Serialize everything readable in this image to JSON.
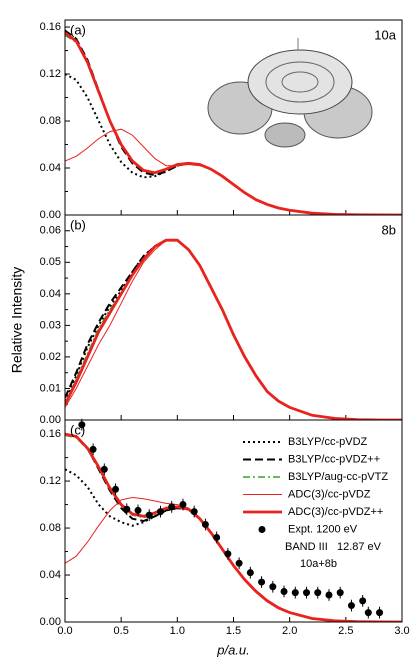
{
  "y_label": "Relative Intensity",
  "chart_data": [
    {
      "type": "line",
      "panel_label": "(a)",
      "orbital": "10a",
      "xlim": [
        0,
        3
      ],
      "ylim": [
        0,
        0.166
      ],
      "yticks": [
        {
          "value": 0,
          "label": "0.00"
        },
        {
          "value": 0.04,
          "label": "0.04"
        },
        {
          "value": 0.08,
          "label": "0.08"
        },
        {
          "value": 0.12,
          "label": "0.12"
        },
        {
          "value": 0.16,
          "label": "0.16"
        }
      ],
      "x": [
        0,
        0.1,
        0.2,
        0.3,
        0.4,
        0.5,
        0.6,
        0.7,
        0.8,
        0.9,
        1.0,
        1.1,
        1.2,
        1.3,
        1.4,
        1.5,
        1.6,
        1.7,
        1.8,
        1.9,
        2.0,
        2.2,
        2.4,
        2.6,
        2.8,
        3.0
      ],
      "series": [
        {
          "color": "#000000",
          "style": "dotted",
          "width": 2,
          "values": [
            0.12,
            0.115,
            0.1,
            0.08,
            0.06,
            0.045,
            0.036,
            0.032,
            0.033,
            0.037,
            0.042,
            0.044,
            0.043,
            0.039,
            0.033,
            0.026,
            0.019,
            0.013,
            0.009,
            0.006,
            0.004,
            0.0015,
            0.0005,
            0.0002,
            0.0001,
            0
          ]
        },
        {
          "color": "#000000",
          "style": "dashed",
          "width": 2,
          "values": [
            0.157,
            0.15,
            0.132,
            0.106,
            0.08,
            0.058,
            0.044,
            0.036,
            0.034,
            0.037,
            0.042,
            0.044,
            0.043,
            0.039,
            0.033,
            0.026,
            0.019,
            0.013,
            0.009,
            0.006,
            0.004,
            0.0015,
            0.0005,
            0.0002,
            0.0001,
            0
          ]
        },
        {
          "color": "#3aa329",
          "style": "dashdot",
          "width": 1.5,
          "values": [
            0.153,
            0.147,
            0.13,
            0.105,
            0.08,
            0.06,
            0.046,
            0.038,
            0.036,
            0.039,
            0.043,
            0.044,
            0.043,
            0.039,
            0.033,
            0.026,
            0.019,
            0.013,
            0.009,
            0.006,
            0.004,
            0.0015,
            0.0005,
            0.0002,
            0.0001,
            0
          ]
        },
        {
          "color": "#e8231f",
          "style": "solid",
          "width": 1,
          "values": [
            0.046,
            0.05,
            0.057,
            0.065,
            0.071,
            0.073,
            0.068,
            0.058,
            0.048,
            0.042,
            0.042,
            0.043,
            0.042,
            0.039,
            0.033,
            0.026,
            0.019,
            0.013,
            0.009,
            0.006,
            0.004,
            0.0015,
            0.0005,
            0.0002,
            0.0001,
            0
          ]
        },
        {
          "color": "#e8231f",
          "style": "solid",
          "width": 2.8,
          "values": [
            0.155,
            0.148,
            0.13,
            0.105,
            0.08,
            0.06,
            0.046,
            0.038,
            0.036,
            0.039,
            0.043,
            0.044,
            0.043,
            0.039,
            0.033,
            0.026,
            0.019,
            0.013,
            0.009,
            0.006,
            0.004,
            0.0015,
            0.0005,
            0.0002,
            0.0001,
            0
          ]
        }
      ]
    },
    {
      "type": "line",
      "panel_label": "(b)",
      "orbital": "8b",
      "xlim": [
        0,
        3
      ],
      "ylim": [
        0,
        0.065
      ],
      "yticks": [
        {
          "value": 0,
          "label": "0.00"
        },
        {
          "value": 0.01,
          "label": "0.01"
        },
        {
          "value": 0.02,
          "label": "0.02"
        },
        {
          "value": 0.03,
          "label": "0.03"
        },
        {
          "value": 0.04,
          "label": "0.04"
        },
        {
          "value": 0.05,
          "label": "0.05"
        },
        {
          "value": 0.06,
          "label": "0.06"
        }
      ],
      "x": [
        0,
        0.1,
        0.2,
        0.3,
        0.4,
        0.5,
        0.6,
        0.7,
        0.8,
        0.9,
        1.0,
        1.1,
        1.2,
        1.3,
        1.4,
        1.5,
        1.6,
        1.7,
        1.8,
        1.9,
        2.0,
        2.2,
        2.4,
        2.6,
        2.8,
        3.0
      ],
      "series": [
        {
          "color": "#000000",
          "style": "dotted",
          "width": 2,
          "values": [
            0.006,
            0.014,
            0.023,
            0.03,
            0.036,
            0.041,
            0.047,
            0.052,
            0.055,
            0.057,
            0.057,
            0.054,
            0.049,
            0.042,
            0.035,
            0.027,
            0.02,
            0.014,
            0.009,
            0.006,
            0.004,
            0.0015,
            0.0005,
            0.0001,
            0,
            0
          ]
        },
        {
          "color": "#000000",
          "style": "dashed",
          "width": 2,
          "values": [
            0.007,
            0.015,
            0.024,
            0.031,
            0.037,
            0.042,
            0.047,
            0.052,
            0.055,
            0.057,
            0.057,
            0.054,
            0.049,
            0.042,
            0.035,
            0.027,
            0.02,
            0.014,
            0.009,
            0.006,
            0.004,
            0.0015,
            0.0005,
            0.0001,
            0,
            0
          ]
        },
        {
          "color": "#3aa329",
          "style": "dashdot",
          "width": 1.5,
          "values": [
            0.005,
            0.013,
            0.021,
            0.029,
            0.035,
            0.04,
            0.046,
            0.051,
            0.055,
            0.057,
            0.057,
            0.054,
            0.049,
            0.042,
            0.035,
            0.027,
            0.02,
            0.014,
            0.009,
            0.006,
            0.004,
            0.0015,
            0.0005,
            0.0001,
            0,
            0
          ]
        },
        {
          "color": "#e8231f",
          "style": "solid",
          "width": 1,
          "values": [
            0.004,
            0.01,
            0.017,
            0.024,
            0.03,
            0.037,
            0.044,
            0.05,
            0.054,
            0.057,
            0.057,
            0.054,
            0.049,
            0.042,
            0.035,
            0.027,
            0.02,
            0.014,
            0.009,
            0.006,
            0.004,
            0.0015,
            0.0005,
            0.0001,
            0,
            0
          ]
        },
        {
          "color": "#e8231f",
          "style": "solid",
          "width": 2.8,
          "values": [
            0.005,
            0.012,
            0.02,
            0.028,
            0.034,
            0.04,
            0.046,
            0.051,
            0.055,
            0.057,
            0.057,
            0.054,
            0.049,
            0.042,
            0.035,
            0.027,
            0.02,
            0.014,
            0.009,
            0.006,
            0.004,
            0.0015,
            0.0005,
            0.0001,
            0,
            0
          ]
        }
      ]
    },
    {
      "type": "line",
      "panel_label": "(c)",
      "x_label": "p/a.u.",
      "annotations": [
        "BAND III   12.87 eV",
        "10a+8b"
      ],
      "xlim": [
        0,
        3
      ],
      "ylim": [
        0,
        0.172
      ],
      "xticks": [
        {
          "value": 0,
          "label": "0.0"
        },
        0.5,
        {
          "value": 1,
          "label": "1.0"
        },
        1.5,
        {
          "value": 2,
          "label": "2.0"
        },
        2.5,
        {
          "value": 3,
          "label": "3.0"
        }
      ],
      "yticks": [
        {
          "value": 0,
          "label": "0.00"
        },
        {
          "value": 0.04,
          "label": "0.04"
        },
        {
          "value": 0.08,
          "label": "0.08"
        },
        {
          "value": 0.12,
          "label": "0.12"
        },
        {
          "value": 0.16,
          "label": "0.16"
        }
      ],
      "x": [
        0,
        0.1,
        0.2,
        0.3,
        0.4,
        0.5,
        0.6,
        0.7,
        0.8,
        0.9,
        1.0,
        1.1,
        1.2,
        1.3,
        1.4,
        1.5,
        1.6,
        1.7,
        1.8,
        1.9,
        2.0,
        2.2,
        2.4,
        2.6,
        2.8,
        3.0
      ],
      "series": [
        {
          "name": "B3LYP/cc-pVDZ",
          "color": "#000000",
          "style": "dotted",
          "width": 2,
          "values": [
            0.13,
            0.125,
            0.115,
            0.1,
            0.09,
            0.085,
            0.082,
            0.085,
            0.09,
            0.095,
            0.097,
            0.096,
            0.088,
            0.076,
            0.062,
            0.048,
            0.036,
            0.026,
            0.018,
            0.012,
            0.008,
            0.003,
            0.001,
            0.0003,
            0.0001,
            0
          ]
        },
        {
          "name": "B3LYP/cc-pVDZ++",
          "color": "#000000",
          "style": "dashed",
          "width": 2,
          "values": [
            0.16,
            0.158,
            0.148,
            0.13,
            0.112,
            0.097,
            0.088,
            0.086,
            0.09,
            0.095,
            0.097,
            0.096,
            0.088,
            0.076,
            0.062,
            0.048,
            0.036,
            0.026,
            0.018,
            0.012,
            0.008,
            0.003,
            0.001,
            0.0003,
            0.0001,
            0
          ]
        },
        {
          "name": "B3LYP/aug-cc-pVTZ",
          "color": "#3aa329",
          "style": "dashdot",
          "width": 1.5,
          "values": [
            0.159,
            0.157,
            0.147,
            0.131,
            0.113,
            0.099,
            0.091,
            0.089,
            0.092,
            0.096,
            0.098,
            0.096,
            0.088,
            0.076,
            0.062,
            0.048,
            0.036,
            0.026,
            0.018,
            0.012,
            0.008,
            0.003,
            0.001,
            0.0003,
            0.0001,
            0
          ]
        },
        {
          "name": "ADC(3)/cc-pVDZ",
          "color": "#e8231f",
          "style": "solid",
          "width": 1,
          "values": [
            0.05,
            0.056,
            0.068,
            0.082,
            0.095,
            0.104,
            0.106,
            0.105,
            0.103,
            0.101,
            0.1,
            0.097,
            0.089,
            0.077,
            0.063,
            0.049,
            0.037,
            0.027,
            0.019,
            0.013,
            0.008,
            0.003,
            0.001,
            0.0003,
            0.0001,
            0
          ]
        },
        {
          "name": "ADC(3)/cc-pVDZ++",
          "color": "#e8231f",
          "style": "solid",
          "width": 2.8,
          "values": [
            0.16,
            0.158,
            0.148,
            0.132,
            0.114,
            0.1,
            0.092,
            0.09,
            0.093,
            0.097,
            0.098,
            0.096,
            0.088,
            0.076,
            0.062,
            0.048,
            0.036,
            0.026,
            0.018,
            0.012,
            0.008,
            0.003,
            0.001,
            0.0003,
            0.0001,
            0
          ]
        },
        {
          "name": "Expt. 1200 eV",
          "color": "#000000",
          "style": "points",
          "x": [
            0.15,
            0.25,
            0.35,
            0.45,
            0.55,
            0.65,
            0.75,
            0.85,
            0.95,
            1.05,
            1.15,
            1.25,
            1.35,
            1.45,
            1.55,
            1.65,
            1.75,
            1.85,
            1.95,
            2.05,
            2.15,
            2.25,
            2.35,
            2.45,
            2.55,
            2.65,
            2.7,
            2.8
          ],
          "values": [
            0.168,
            0.147,
            0.13,
            0.113,
            0.096,
            0.095,
            0.091,
            0.094,
            0.098,
            0.1,
            0.094,
            0.083,
            0.072,
            0.058,
            0.05,
            0.042,
            0.034,
            0.03,
            0.026,
            0.025,
            0.025,
            0.025,
            0.023,
            0.025,
            0.014,
            0.018,
            0.008,
            0.008
          ],
          "errors": [
            0.005,
            0.005,
            0.005,
            0.005,
            0.005,
            0.005,
            0.005,
            0.005,
            0.005,
            0.005,
            0.005,
            0.005,
            0.005,
            0.005,
            0.005,
            0.005,
            0.005,
            0.005,
            0.005,
            0.005,
            0.005,
            0.005,
            0.005,
            0.005,
            0.005,
            0.005,
            0.005,
            0.005
          ]
        }
      ]
    }
  ]
}
